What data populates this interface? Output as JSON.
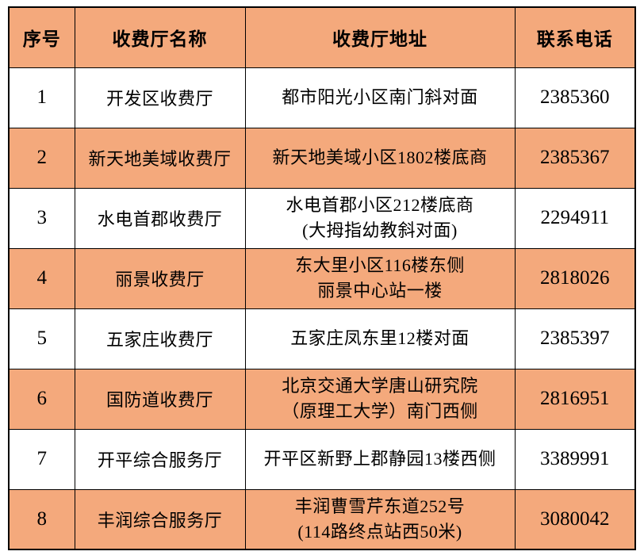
{
  "accent_color": "#F4A97C",
  "border_color": "#000000",
  "text_color": "#000000",
  "table": {
    "headers": [
      "序号",
      "收费厅名称",
      "收费厅地址",
      "联系电话"
    ],
    "rows": [
      {
        "num": "1",
        "name": "开发区收费厅",
        "address": "都市阳光小区南门斜对面",
        "phone": "2385360"
      },
      {
        "num": "2",
        "name": "新天地美域收费厅",
        "address": "新天地美域小区1802楼底商",
        "phone": "2385367"
      },
      {
        "num": "3",
        "name": "水电首郡收费厅",
        "address": "水电首郡小区212楼底商\n(大拇指幼教斜对面)",
        "phone": "2294911"
      },
      {
        "num": "4",
        "name": "丽景收费厅",
        "address": "东大里小区116楼东侧\n丽景中心站一楼",
        "phone": "2818026"
      },
      {
        "num": "5",
        "name": "五家庄收费厅",
        "address": "五家庄凤东里12楼对面",
        "phone": "2385397"
      },
      {
        "num": "6",
        "name": "国防道收费厅",
        "address": "北京交通大学唐山研究院\n（原理工大学）南门西侧",
        "phone": "2816951"
      },
      {
        "num": "7",
        "name": "开平综合服务厅",
        "address": "开平区新野上郡静园13楼西侧",
        "phone": "3389991"
      },
      {
        "num": "8",
        "name": "丰润综合服务厅",
        "address": "丰润曹雪芹东道252号\n(114路终点站西50米)",
        "phone": "3080042"
      }
    ]
  }
}
